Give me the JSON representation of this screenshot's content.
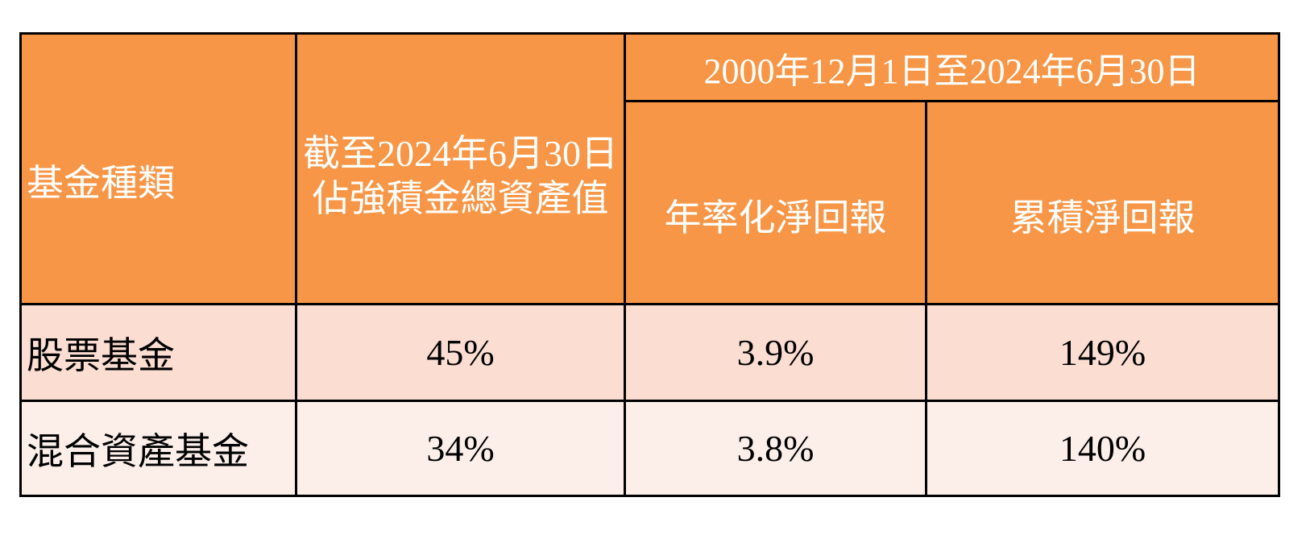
{
  "table": {
    "headers": {
      "fund_type": "基金種類",
      "asset_share_line1": "截至2024年6月30日",
      "asset_share_line2": "佔強積金總資產值",
      "period": "2000年12月1日至2024年6月30日",
      "annualized_return": "年率化淨回報",
      "cumulative_return": "累積淨回報"
    },
    "rows": [
      {
        "fund_type": "股票基金",
        "asset_share": "45%",
        "annualized_return": "3.9%",
        "cumulative_return": "149%"
      },
      {
        "fund_type": "混合資產基金",
        "asset_share": "34%",
        "annualized_return": "3.8%",
        "cumulative_return": "140%"
      }
    ]
  },
  "colors": {
    "header_bg": "#F79646",
    "header_text": "#FFFFFF",
    "row1_bg": "#FBDDD2",
    "row2_bg": "#FCEFEA",
    "border": "#000000"
  }
}
